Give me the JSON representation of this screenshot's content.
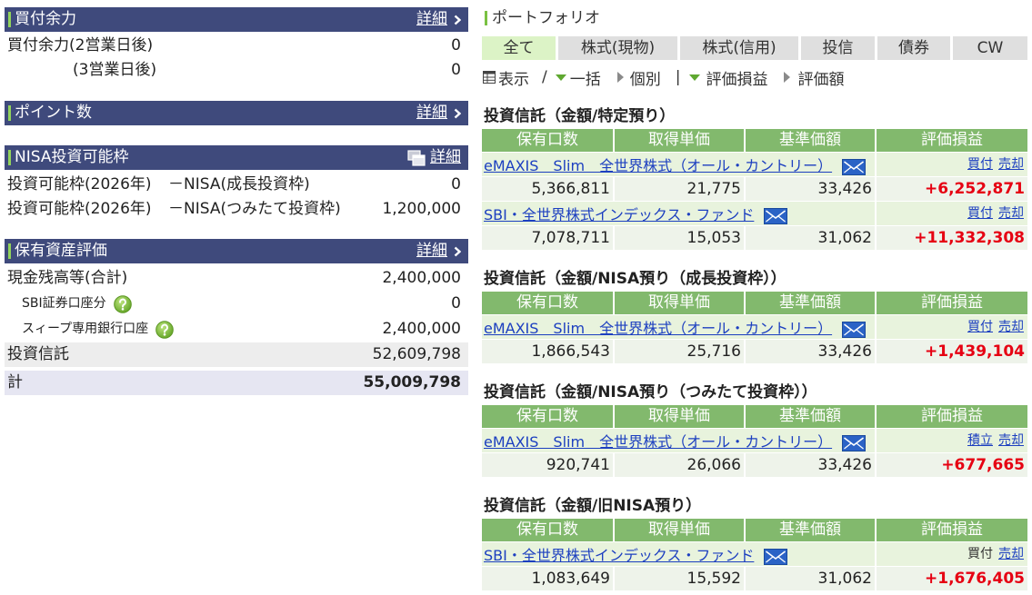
{
  "left": {
    "buying_power": {
      "title": "買付余力",
      "detail": "詳細",
      "rows": [
        {
          "label": "買付余力(2営業日後)",
          "value": "0"
        },
        {
          "label": "(3営業日後)",
          "value": "0"
        }
      ]
    },
    "points": {
      "title": "ポイント数",
      "detail": "詳細"
    },
    "nisa": {
      "title": "NISA投資可能枠",
      "detail": "詳細",
      "rows": [
        {
          "label": "投資可能枠(2026年)",
          "sub": "－NISA(成長投資枠)",
          "value": "0"
        },
        {
          "label": "投資可能枠(2026年)",
          "sub": "－NISA(つみたて投資枠)",
          "value": "1,200,000"
        }
      ]
    },
    "assets": {
      "title": "保有資産評価",
      "detail": "詳細",
      "rows": [
        {
          "label": "現金残高等(合計)",
          "value": "2,400,000"
        },
        {
          "label": "SBI証券口座分",
          "value": "0"
        },
        {
          "label": "スィープ専用銀行口座",
          "value": "2,400,000"
        },
        {
          "label": "投資信託",
          "value": "52,609,798"
        },
        {
          "label": "計",
          "value": "55,009,798"
        }
      ]
    }
  },
  "portfolio": {
    "title": "ポートフォリオ",
    "tabs": [
      {
        "label": "全て",
        "selected": true
      },
      {
        "label": "株式(現物)",
        "selected": false
      },
      {
        "label": "株式(信用)",
        "selected": false
      },
      {
        "label": "投信",
        "selected": false
      },
      {
        "label": "債券",
        "selected": false
      },
      {
        "label": "CW",
        "selected": false
      }
    ],
    "controls": {
      "display": "表示",
      "separator": "/",
      "bulk": "一括",
      "individual": "個別",
      "divider": "|",
      "profit_loss": "評価損益",
      "valuation": "評価額"
    },
    "columns": [
      "保有口数",
      "取得単価",
      "基準価額",
      "評価損益"
    ],
    "sections": [
      {
        "title": "投資信託（金額/特定預り）",
        "funds": [
          {
            "name": "eMAXIS　Slim　全世界株式（オール・カントリー）",
            "actions": [
              "買付",
              "売却"
            ],
            "units": "5,366,811",
            "cost": "21,775",
            "nav": "33,426",
            "pl": "+6,252,871"
          },
          {
            "name": "SBI・全世界株式インデックス・ファンド",
            "actions": [
              "買付",
              "売却"
            ],
            "units": "7,078,711",
            "cost": "15,053",
            "nav": "31,062",
            "pl": "+11,332,308"
          }
        ]
      },
      {
        "title": "投資信託（金額/NISA預り（成長投資枠））",
        "funds": [
          {
            "name": "eMAXIS　Slim　全世界株式（オール・カントリー）",
            "actions": [
              "買付",
              "売却"
            ],
            "units": "1,866,543",
            "cost": "25,716",
            "nav": "33,426",
            "pl": "+1,439,104"
          }
        ]
      },
      {
        "title": "投資信託（金額/NISA預り（つみたて投資枠））",
        "funds": [
          {
            "name": "eMAXIS　Slim　全世界株式（オール・カントリー）",
            "actions": [
              "積立",
              "売却"
            ],
            "units": "920,741",
            "cost": "26,066",
            "nav": "33,426",
            "pl": "+677,665"
          }
        ]
      },
      {
        "title": "投資信託（金額/旧NISA預り）",
        "funds": [
          {
            "name": "SBI・全世界株式インデックス・ファンド",
            "actions": [
              "買付",
              "売却"
            ],
            "units": "1,083,649",
            "cost": "15,592",
            "nav": "31,062",
            "pl": "+1,676,405"
          }
        ]
      }
    ]
  },
  "icons": {
    "detail": "chevron-right-icon",
    "popup": "popup-window-icon",
    "help": "help-icon",
    "table": "table-icon",
    "mail": "mail-icon"
  },
  "colors": {
    "left_header": "#3f4a7c",
    "accent_green": "#92d35c",
    "table_header": "#82b96d",
    "link": "#1c3fc0",
    "profit": "#e60012",
    "selected_tab": "#dcf3c6"
  }
}
